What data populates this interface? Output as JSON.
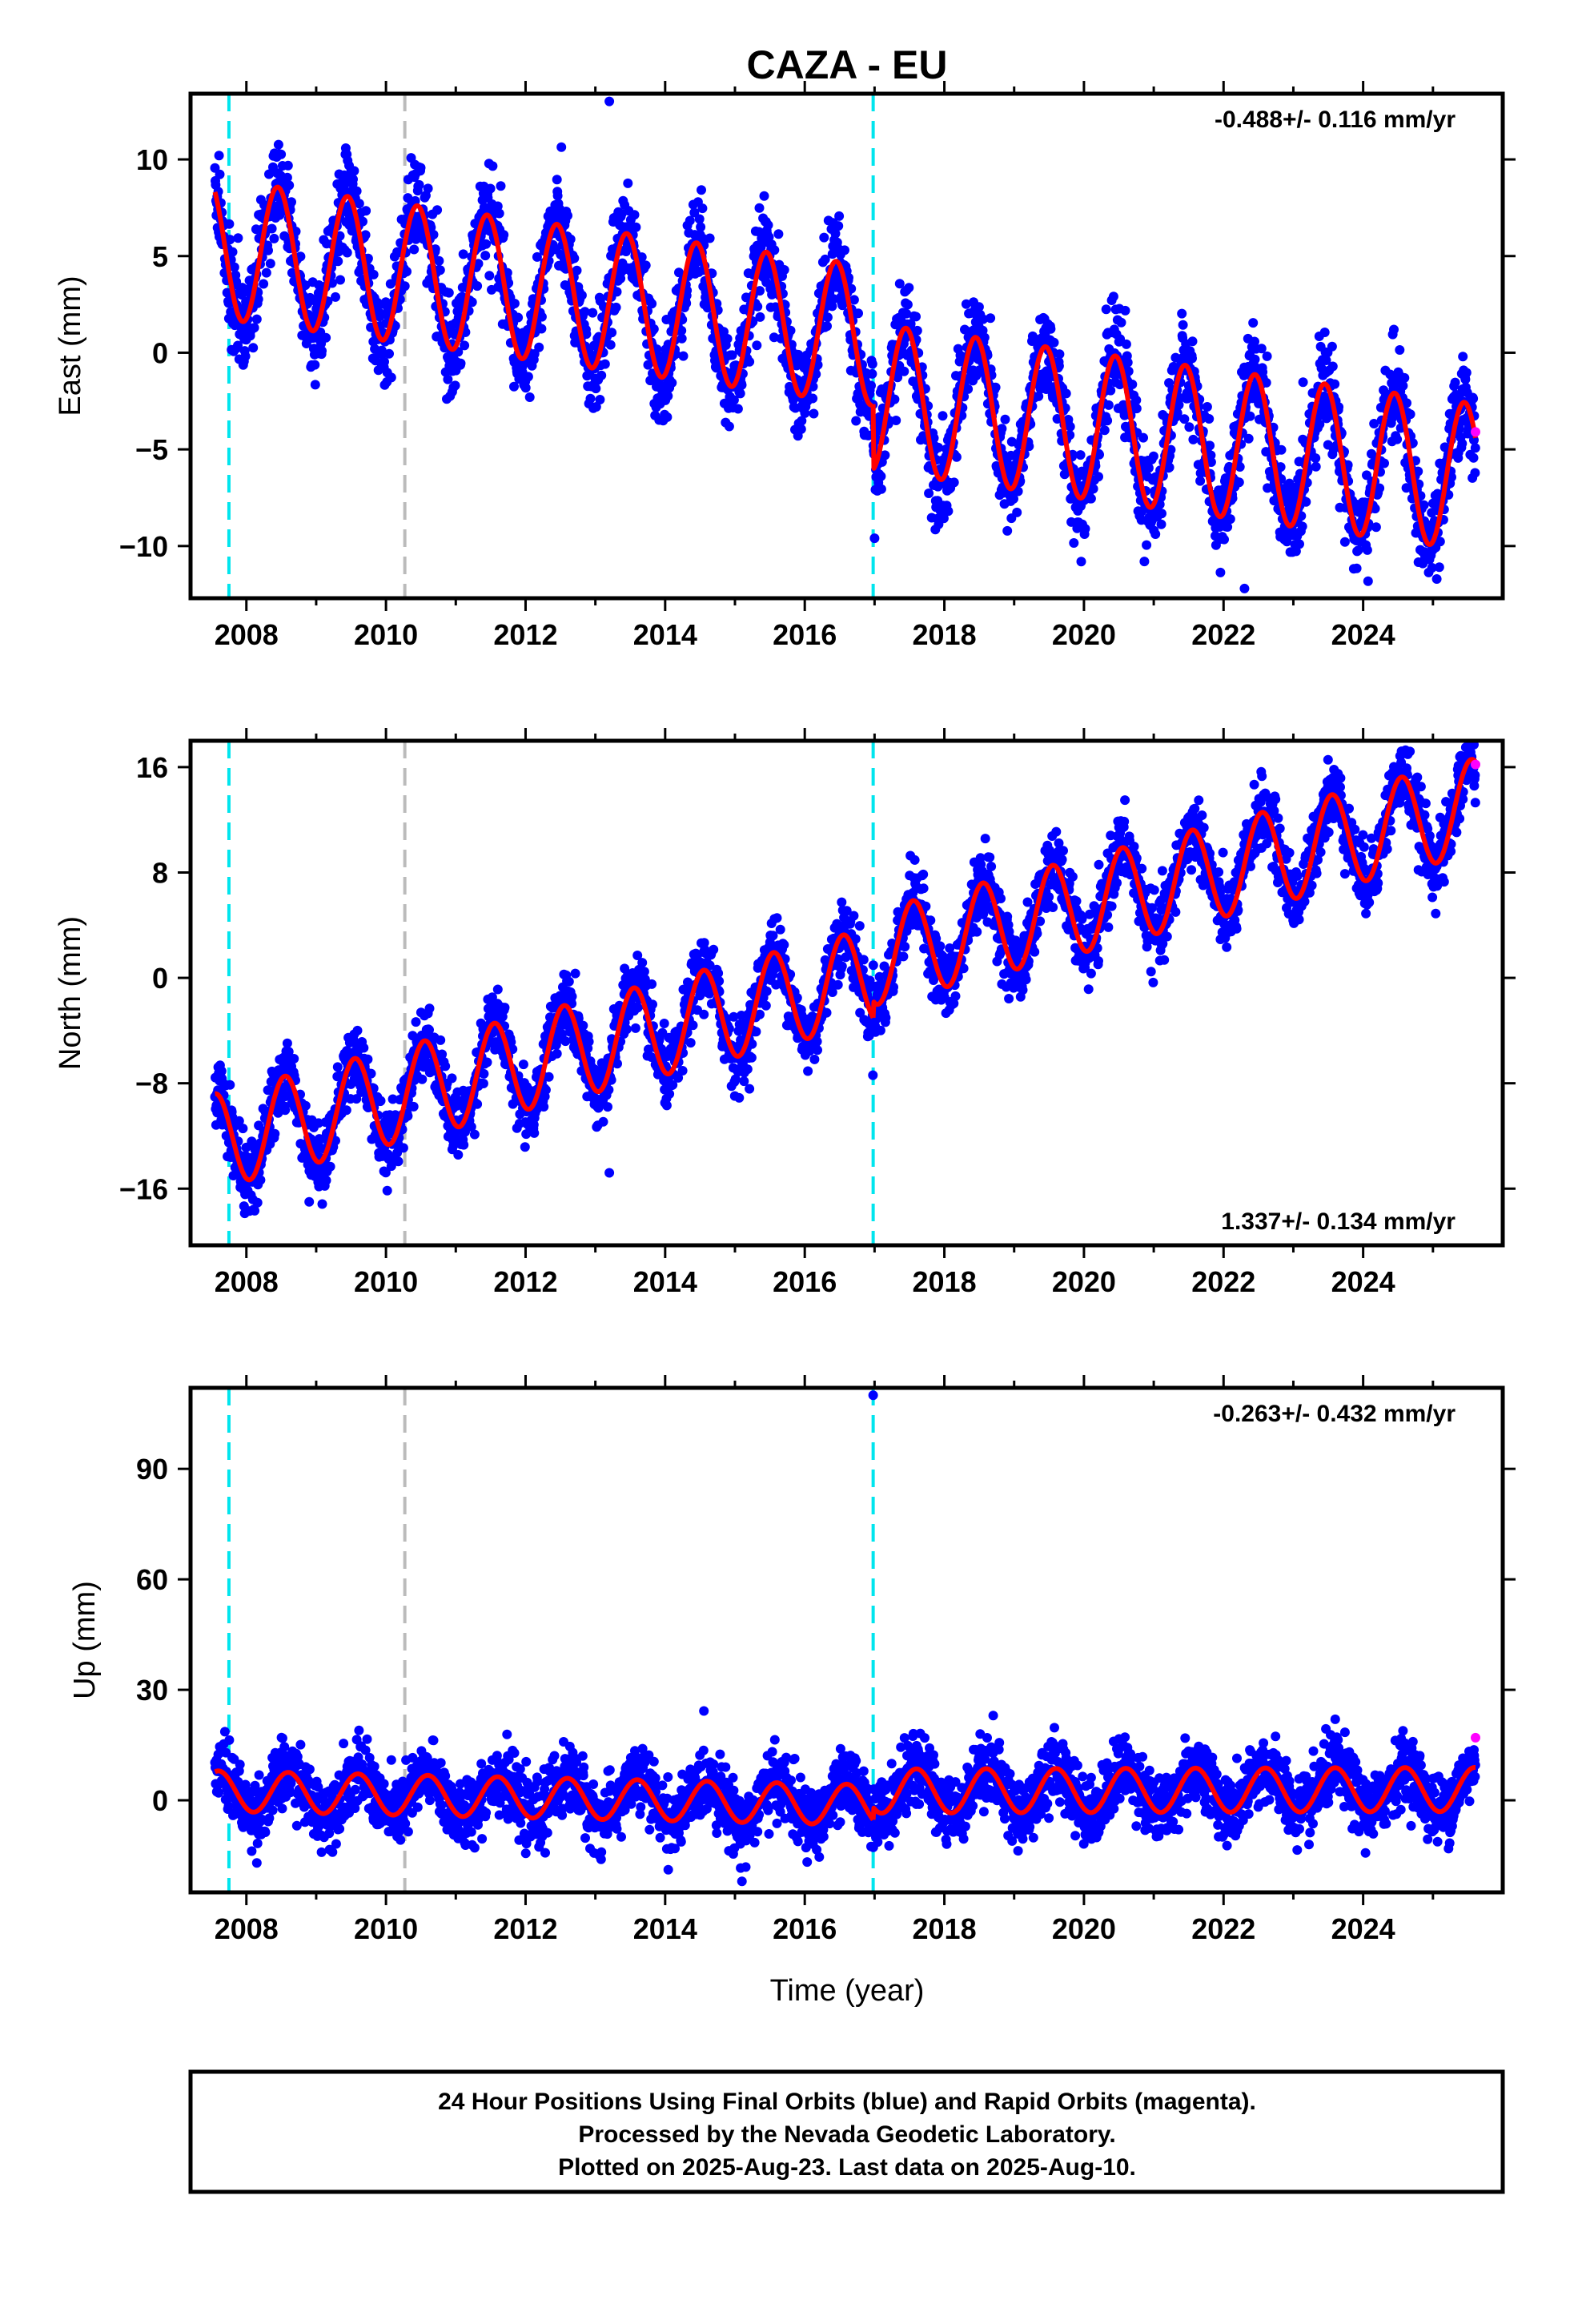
{
  "title": "CAZA - EU",
  "xlabel": "Time (year)",
  "footer": {
    "line1": "24 Hour Positions Using Final Orbits (blue) and Rapid Orbits (magenta).",
    "line2": "Processed by the Nevada Geodetic Laboratory.",
    "line3": "Plotted on 2025-Aug-23. Last data on 2025-Aug-10."
  },
  "colors": {
    "final_points": "#0000ff",
    "rapid_points": "#ff00ff",
    "fit_line": "#ff0000",
    "event_cyan": "#00e5ee",
    "event_gray": "#bbbbbb"
  },
  "chart_data": [
    {
      "type": "scatter",
      "ylabel": "East (mm)",
      "rate_text": "-0.488+/- 0.116 mm/yr",
      "rate_position": "top-right",
      "xlim": [
        2007.2,
        2026.0
      ],
      "ylim": [
        -12.7,
        13.4
      ],
      "xticks": [
        2008,
        2010,
        2012,
        2014,
        2016,
        2018,
        2020,
        2022,
        2024
      ],
      "yticks": [
        -10,
        -5,
        0,
        5,
        10
      ],
      "ytick_labels": [
        "−10",
        "−5",
        "0",
        "5",
        "10"
      ],
      "event_lines": [
        {
          "x": 2007.75,
          "color": "cyan"
        },
        {
          "x": 2010.27,
          "color": "gray"
        },
        {
          "x": 2016.98,
          "color": "cyan"
        }
      ],
      "fit_model": {
        "segments": [
          {
            "start": 2007.55,
            "end": 2016.98,
            "value_at_start": 5.4,
            "rate": -0.48,
            "seasonal_amplitude": 3.6,
            "peak_year_fraction": 0.45
          },
          {
            "start": 2016.98,
            "end": 2025.61,
            "value_at_start": -2.3,
            "rate": -0.48,
            "seasonal_amplitude": 3.8,
            "peak_year_fraction": 0.45
          }
        ],
        "scatter": 1.2
      },
      "outliers": [
        {
          "x": 2013.2,
          "y": 13.0
        },
        {
          "x": 2022.3,
          "y": -12.2
        },
        {
          "x": 2017.0,
          "y": -9.6
        }
      ],
      "rapid_points": [
        {
          "x": 2025.61,
          "y": -4.1
        }
      ]
    },
    {
      "type": "scatter",
      "ylabel": "North (mm)",
      "rate_text": "1.337+/- 0.134 mm/yr",
      "rate_position": "bottom-right",
      "xlim": [
        2007.2,
        2026.0
      ],
      "ylim": [
        -20.3,
        18.0
      ],
      "xticks": [
        2008,
        2010,
        2012,
        2014,
        2016,
        2018,
        2020,
        2022,
        2024
      ],
      "yticks": [
        -16,
        -8,
        0,
        8,
        16
      ],
      "ytick_labels": [
        "−16",
        "−8",
        "0",
        "8",
        "16"
      ],
      "event_lines": [
        {
          "x": 2007.75,
          "color": "cyan"
        },
        {
          "x": 2010.27,
          "color": "gray"
        },
        {
          "x": 2016.98,
          "color": "cyan"
        }
      ],
      "fit_model": {
        "segments": [
          {
            "start": 2007.55,
            "end": 2016.98,
            "value_at_start": -12.4,
            "rate": 1.34,
            "seasonal_amplitude": 3.6,
            "peak_year_fraction": 0.55
          },
          {
            "start": 2016.98,
            "end": 2025.61,
            "value_at_start": 1.5,
            "rate": 1.34,
            "seasonal_amplitude": 3.6,
            "peak_year_fraction": 0.55
          }
        ],
        "scatter": 1.3
      },
      "outliers": [
        {
          "x": 2013.2,
          "y": -14.8
        },
        {
          "x": 2024.55,
          "y": 17.2
        },
        {
          "x": 2008.9,
          "y": -17.0
        }
      ],
      "rapid_points": [
        {
          "x": 2025.61,
          "y": 16.2
        }
      ]
    },
    {
      "type": "scatter",
      "ylabel": "Up (mm)",
      "rate_text": "-0.263+/- 0.432 mm/yr",
      "rate_position": "top-right",
      "xlim": [
        2007.2,
        2026.0
      ],
      "ylim": [
        -25,
        112
      ],
      "xticks": [
        2008,
        2010,
        2012,
        2014,
        2016,
        2018,
        2020,
        2022,
        2024
      ],
      "yticks": [
        0,
        30,
        60,
        90
      ],
      "ytick_labels": [
        "0",
        "30",
        "60",
        "90"
      ],
      "event_lines": [
        {
          "x": 2007.75,
          "color": "cyan"
        },
        {
          "x": 2010.27,
          "color": "gray"
        },
        {
          "x": 2016.98,
          "color": "cyan"
        }
      ],
      "fit_model": {
        "segments": [
          {
            "start": 2007.55,
            "end": 2016.98,
            "value_at_start": 2.5,
            "rate": -0.4,
            "seasonal_amplitude": 5.5,
            "peak_year_fraction": 0.6
          },
          {
            "start": 2016.98,
            "end": 2025.61,
            "value_at_start": 2.5,
            "rate": 0.05,
            "seasonal_amplitude": 6.0,
            "peak_year_fraction": 0.6
          }
        ],
        "scatter": 4.5
      },
      "outliers": [
        {
          "x": 2016.98,
          "y": 110
        },
        {
          "x": 2018.7,
          "y": 23
        },
        {
          "x": 2023.6,
          "y": 22
        },
        {
          "x": 2015.1,
          "y": -22
        }
      ],
      "rapid_points": [
        {
          "x": 2025.61,
          "y": 17
        }
      ]
    }
  ]
}
